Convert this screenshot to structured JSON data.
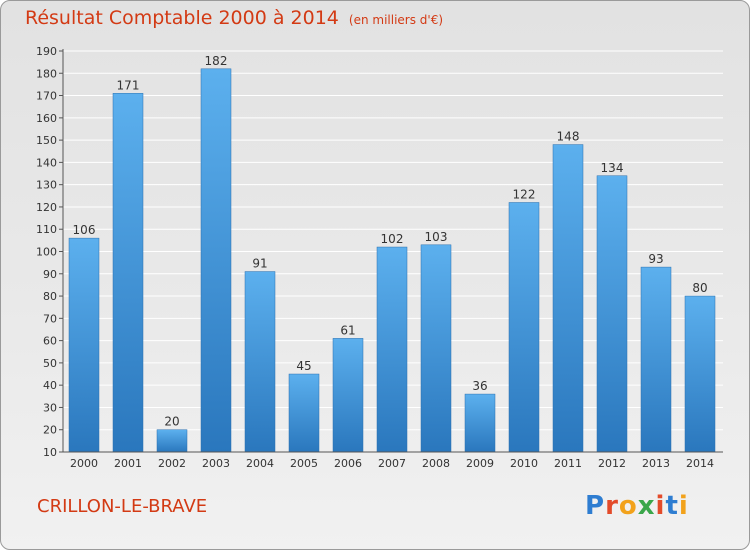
{
  "chart_data": {
    "type": "bar",
    "title": "Résultat Comptable 2000 à 2014",
    "subtitle": "(en milliers d'€)",
    "categories": [
      "2000",
      "2001",
      "2002",
      "2003",
      "2004",
      "2005",
      "2006",
      "2007",
      "2008",
      "2009",
      "2010",
      "2011",
      "2012",
      "2013",
      "2014"
    ],
    "values": [
      106,
      171,
      20,
      182,
      91,
      45,
      61,
      102,
      103,
      36,
      122,
      148,
      134,
      93,
      80
    ],
    "ylim": [
      10,
      190
    ],
    "yticks": [
      10,
      20,
      30,
      40,
      50,
      60,
      70,
      80,
      90,
      100,
      110,
      120,
      130,
      140,
      150,
      160,
      170,
      180,
      190
    ],
    "xlabel": "",
    "ylabel": "",
    "grid": true,
    "bar_color": "#3d8fd6"
  },
  "commune": "CRILLON-LE-BRAVE",
  "logo": {
    "letters": [
      "P",
      "r",
      "o",
      "x",
      "i",
      "t",
      "i"
    ],
    "colors": [
      "#2e7dd1",
      "#e34b2a",
      "#f2a21b",
      "#3aa64a",
      "#e34b2a",
      "#2e7dd1",
      "#f2a21b"
    ]
  }
}
